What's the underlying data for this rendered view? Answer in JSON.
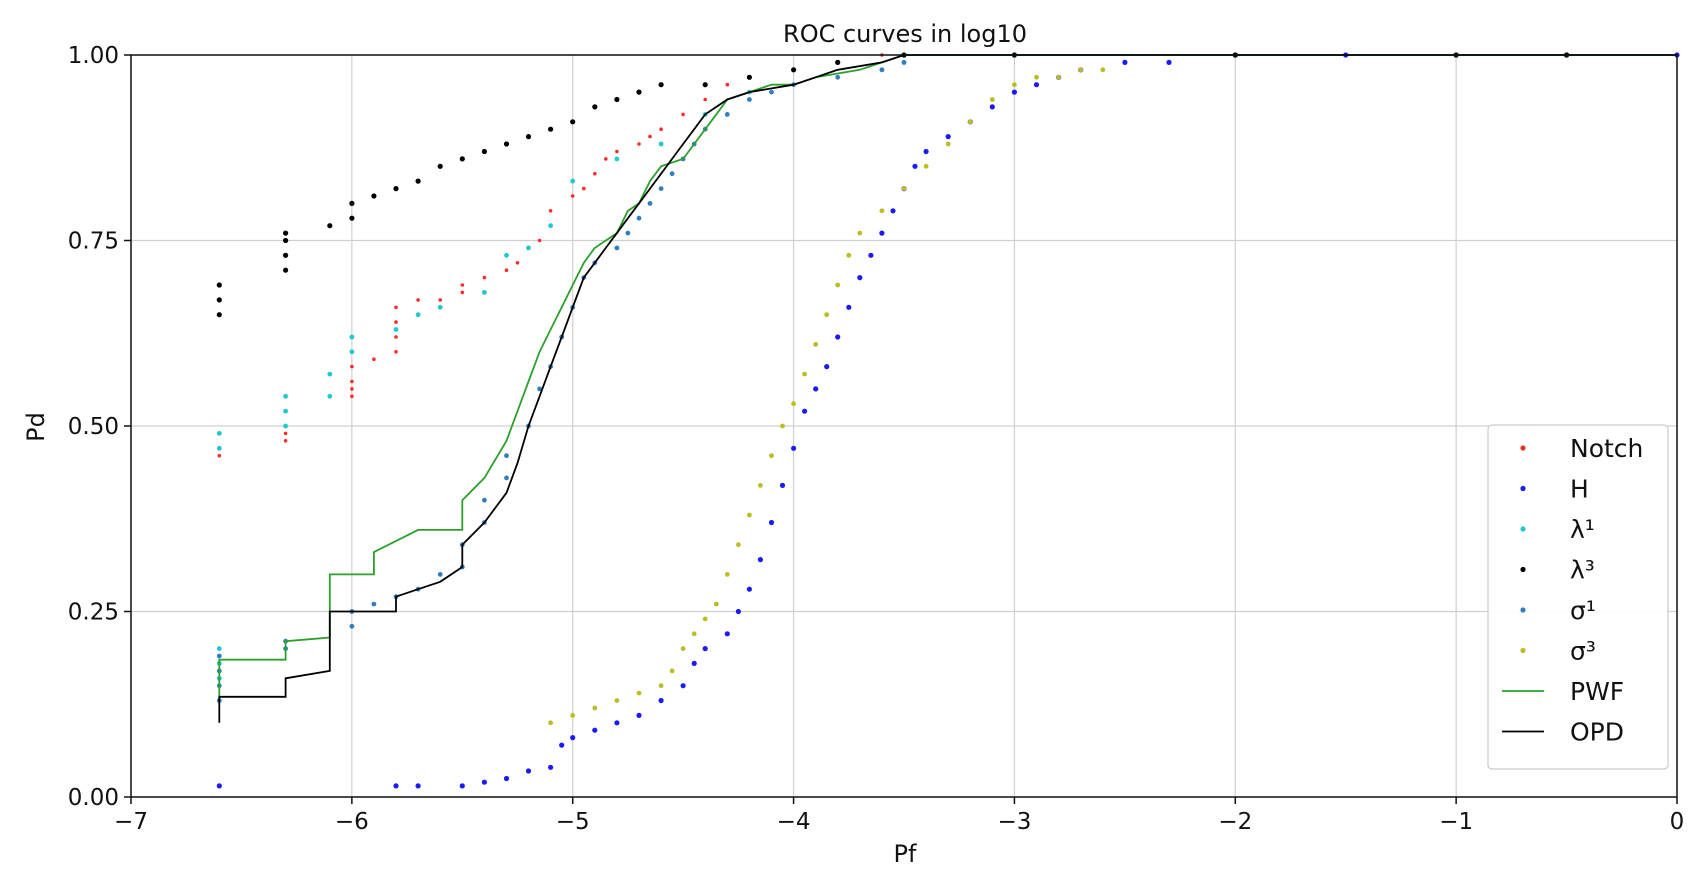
{
  "chart_data": {
    "type": "scatter",
    "title": "ROC curves in log10",
    "xlabel": "Pf",
    "ylabel": "Pd",
    "xlim": [
      -7,
      0
    ],
    "ylim": [
      0,
      1.0
    ],
    "grid": true,
    "legend_position": "lower-right",
    "x_ticks": [
      -7,
      -6,
      -5,
      -4,
      -3,
      -2,
      -1,
      0
    ],
    "x_tick_labels": [
      "−7",
      "−6",
      "−5",
      "−4",
      "−3",
      "−2",
      "−1",
      "0"
    ],
    "y_ticks": [
      0,
      0.25,
      0.5,
      0.75,
      1.0
    ],
    "y_tick_labels": [
      "0.00",
      "0.25",
      "0.50",
      "0.75",
      "1.00"
    ],
    "series": [
      {
        "name": "Notch",
        "kind": "points",
        "color": "#ff2a2a",
        "points": [
          [
            -6.6,
            0.47
          ],
          [
            -6.6,
            0.46
          ],
          [
            -6.3,
            0.48
          ],
          [
            -6.3,
            0.49
          ],
          [
            -6.3,
            0.5
          ],
          [
            -6.3,
            0.52
          ],
          [
            -6.0,
            0.54
          ],
          [
            -6.0,
            0.55
          ],
          [
            -6.0,
            0.56
          ],
          [
            -6.0,
            0.58
          ],
          [
            -5.9,
            0.59
          ],
          [
            -5.8,
            0.6
          ],
          [
            -5.8,
            0.62
          ],
          [
            -5.8,
            0.64
          ],
          [
            -5.8,
            0.66
          ],
          [
            -5.7,
            0.67
          ],
          [
            -5.6,
            0.67
          ],
          [
            -5.5,
            0.68
          ],
          [
            -5.5,
            0.69
          ],
          [
            -5.4,
            0.7
          ],
          [
            -5.3,
            0.71
          ],
          [
            -5.25,
            0.72
          ],
          [
            -5.2,
            0.74
          ],
          [
            -5.15,
            0.75
          ],
          [
            -5.1,
            0.77
          ],
          [
            -5.1,
            0.79
          ],
          [
            -5.0,
            0.81
          ],
          [
            -4.95,
            0.82
          ],
          [
            -4.9,
            0.84
          ],
          [
            -4.85,
            0.86
          ],
          [
            -4.8,
            0.87
          ],
          [
            -4.7,
            0.88
          ],
          [
            -4.65,
            0.89
          ],
          [
            -4.6,
            0.9
          ],
          [
            -4.5,
            0.92
          ],
          [
            -4.4,
            0.94
          ],
          [
            -4.3,
            0.96
          ],
          [
            -4.2,
            0.97
          ],
          [
            -4.0,
            0.98
          ],
          [
            -3.8,
            0.99
          ],
          [
            -3.6,
            1.0
          ]
        ]
      },
      {
        "name": "H",
        "kind": "points",
        "color": "#1a1aff",
        "points": [
          [
            -6.6,
            0.015
          ],
          [
            -5.8,
            0.015
          ],
          [
            -5.7,
            0.015
          ],
          [
            -5.5,
            0.015
          ],
          [
            -5.4,
            0.02
          ],
          [
            -5.3,
            0.025
          ],
          [
            -5.2,
            0.035
          ],
          [
            -5.1,
            0.04
          ],
          [
            -5.05,
            0.07
          ],
          [
            -5.0,
            0.08
          ],
          [
            -4.9,
            0.09
          ],
          [
            -4.8,
            0.1
          ],
          [
            -4.7,
            0.11
          ],
          [
            -4.6,
            0.13
          ],
          [
            -4.5,
            0.15
          ],
          [
            -4.45,
            0.18
          ],
          [
            -4.4,
            0.2
          ],
          [
            -4.3,
            0.22
          ],
          [
            -4.25,
            0.25
          ],
          [
            -4.2,
            0.28
          ],
          [
            -4.15,
            0.32
          ],
          [
            -4.1,
            0.37
          ],
          [
            -4.05,
            0.42
          ],
          [
            -4.0,
            0.47
          ],
          [
            -3.95,
            0.52
          ],
          [
            -3.9,
            0.55
          ],
          [
            -3.85,
            0.58
          ],
          [
            -3.8,
            0.62
          ],
          [
            -3.75,
            0.66
          ],
          [
            -3.7,
            0.7
          ],
          [
            -3.65,
            0.73
          ],
          [
            -3.6,
            0.76
          ],
          [
            -3.55,
            0.79
          ],
          [
            -3.5,
            0.82
          ],
          [
            -3.45,
            0.85
          ],
          [
            -3.4,
            0.87
          ],
          [
            -3.3,
            0.89
          ],
          [
            -3.2,
            0.91
          ],
          [
            -3.1,
            0.93
          ],
          [
            -3.0,
            0.95
          ],
          [
            -2.9,
            0.96
          ],
          [
            -2.8,
            0.97
          ],
          [
            -2.7,
            0.98
          ],
          [
            -2.5,
            0.99
          ],
          [
            -2.3,
            0.99
          ],
          [
            -2.0,
            1.0
          ],
          [
            -1.5,
            1.0
          ],
          [
            -1.0,
            1.0
          ],
          [
            -0.5,
            1.0
          ],
          [
            0.0,
            1.0
          ]
        ]
      },
      {
        "name": "λ¹",
        "kind": "points",
        "color": "#1fc9cf",
        "points": [
          [
            -6.6,
            0.2
          ],
          [
            -6.6,
            0.18
          ],
          [
            -6.6,
            0.16
          ],
          [
            -6.6,
            0.49
          ],
          [
            -6.6,
            0.47
          ],
          [
            -6.3,
            0.5
          ],
          [
            -6.3,
            0.52
          ],
          [
            -6.3,
            0.54
          ],
          [
            -6.1,
            0.54
          ],
          [
            -6.1,
            0.57
          ],
          [
            -6.0,
            0.6
          ],
          [
            -6.0,
            0.62
          ],
          [
            -5.8,
            0.63
          ],
          [
            -5.7,
            0.65
          ],
          [
            -5.6,
            0.66
          ],
          [
            -5.4,
            0.68
          ],
          [
            -5.3,
            0.73
          ],
          [
            -5.2,
            0.74
          ],
          [
            -5.1,
            0.77
          ],
          [
            -5.0,
            0.83
          ],
          [
            -4.8,
            0.86
          ],
          [
            -4.6,
            0.88
          ],
          [
            -4.4,
            0.92
          ],
          [
            -4.2,
            0.95
          ],
          [
            -3.6,
            0.98
          ],
          [
            -3.5,
            0.99
          ]
        ]
      },
      {
        "name": "λ³",
        "kind": "points",
        "color": "#000000",
        "points": [
          [
            -6.6,
            0.65
          ],
          [
            -6.6,
            0.67
          ],
          [
            -6.6,
            0.69
          ],
          [
            -6.3,
            0.71
          ],
          [
            -6.3,
            0.73
          ],
          [
            -6.3,
            0.75
          ],
          [
            -6.3,
            0.76
          ],
          [
            -6.1,
            0.77
          ],
          [
            -6.0,
            0.78
          ],
          [
            -6.0,
            0.8
          ],
          [
            -5.9,
            0.81
          ],
          [
            -5.8,
            0.82
          ],
          [
            -5.7,
            0.83
          ],
          [
            -5.6,
            0.85
          ],
          [
            -5.5,
            0.86
          ],
          [
            -5.4,
            0.87
          ],
          [
            -5.3,
            0.88
          ],
          [
            -5.2,
            0.89
          ],
          [
            -5.1,
            0.9
          ],
          [
            -5.0,
            0.91
          ],
          [
            -4.9,
            0.93
          ],
          [
            -4.8,
            0.94
          ],
          [
            -4.7,
            0.95
          ],
          [
            -4.6,
            0.96
          ],
          [
            -4.4,
            0.96
          ],
          [
            -4.2,
            0.97
          ],
          [
            -4.0,
            0.98
          ],
          [
            -3.8,
            0.99
          ],
          [
            -3.5,
            1.0
          ],
          [
            -3.0,
            1.0
          ],
          [
            -2.0,
            1.0
          ],
          [
            -1.0,
            1.0
          ],
          [
            -0.5,
            1.0
          ]
        ]
      },
      {
        "name": "σ¹",
        "kind": "points",
        "color": "#2f7fc1",
        "points": [
          [
            -6.6,
            0.13
          ],
          [
            -6.6,
            0.15
          ],
          [
            -6.6,
            0.17
          ],
          [
            -6.6,
            0.19
          ],
          [
            -6.3,
            0.2
          ],
          [
            -6.3,
            0.21
          ],
          [
            -6.0,
            0.23
          ],
          [
            -6.0,
            0.25
          ],
          [
            -5.9,
            0.26
          ],
          [
            -5.8,
            0.27
          ],
          [
            -5.7,
            0.28
          ],
          [
            -5.6,
            0.3
          ],
          [
            -5.5,
            0.31
          ],
          [
            -5.5,
            0.34
          ],
          [
            -5.4,
            0.37
          ],
          [
            -5.4,
            0.4
          ],
          [
            -5.3,
            0.43
          ],
          [
            -5.3,
            0.46
          ],
          [
            -5.2,
            0.5
          ],
          [
            -5.15,
            0.55
          ],
          [
            -5.1,
            0.58
          ],
          [
            -5.05,
            0.62
          ],
          [
            -5.0,
            0.66
          ],
          [
            -4.95,
            0.7
          ],
          [
            -4.9,
            0.72
          ],
          [
            -4.8,
            0.74
          ],
          [
            -4.75,
            0.76
          ],
          [
            -4.7,
            0.78
          ],
          [
            -4.65,
            0.8
          ],
          [
            -4.6,
            0.82
          ],
          [
            -4.55,
            0.84
          ],
          [
            -4.5,
            0.86
          ],
          [
            -4.45,
            0.88
          ],
          [
            -4.4,
            0.9
          ],
          [
            -4.3,
            0.92
          ],
          [
            -4.2,
            0.94
          ],
          [
            -4.1,
            0.95
          ],
          [
            -4.0,
            0.96
          ],
          [
            -3.8,
            0.97
          ],
          [
            -3.6,
            0.98
          ],
          [
            -3.5,
            0.99
          ]
        ]
      },
      {
        "name": "σ³",
        "kind": "points",
        "color": "#bcbd22",
        "points": [
          [
            -5.1,
            0.1
          ],
          [
            -5.0,
            0.11
          ],
          [
            -4.9,
            0.12
          ],
          [
            -4.8,
            0.13
          ],
          [
            -4.7,
            0.14
          ],
          [
            -4.6,
            0.15
          ],
          [
            -4.55,
            0.17
          ],
          [
            -4.5,
            0.2
          ],
          [
            -4.45,
            0.22
          ],
          [
            -4.4,
            0.24
          ],
          [
            -4.35,
            0.26
          ],
          [
            -4.3,
            0.3
          ],
          [
            -4.25,
            0.34
          ],
          [
            -4.2,
            0.38
          ],
          [
            -4.15,
            0.42
          ],
          [
            -4.1,
            0.46
          ],
          [
            -4.05,
            0.5
          ],
          [
            -4.0,
            0.53
          ],
          [
            -3.95,
            0.57
          ],
          [
            -3.9,
            0.61
          ],
          [
            -3.85,
            0.65
          ],
          [
            -3.8,
            0.69
          ],
          [
            -3.75,
            0.73
          ],
          [
            -3.7,
            0.76
          ],
          [
            -3.6,
            0.79
          ],
          [
            -3.5,
            0.82
          ],
          [
            -3.4,
            0.85
          ],
          [
            -3.3,
            0.88
          ],
          [
            -3.2,
            0.91
          ],
          [
            -3.1,
            0.94
          ],
          [
            -3.0,
            0.96
          ],
          [
            -2.9,
            0.97
          ],
          [
            -2.8,
            0.97
          ],
          [
            -2.7,
            0.98
          ],
          [
            -2.6,
            0.98
          ]
        ]
      },
      {
        "name": "PWF",
        "kind": "step",
        "color": "#2ca02c",
        "points": [
          [
            -6.6,
            0.13
          ],
          [
            -6.6,
            0.185
          ],
          [
            -6.3,
            0.185
          ],
          [
            -6.3,
            0.21
          ],
          [
            -6.1,
            0.215
          ],
          [
            -6.1,
            0.3
          ],
          [
            -5.9,
            0.3
          ],
          [
            -5.9,
            0.33
          ],
          [
            -5.7,
            0.36
          ],
          [
            -5.5,
            0.36
          ],
          [
            -5.5,
            0.4
          ],
          [
            -5.4,
            0.43
          ],
          [
            -5.3,
            0.48
          ],
          [
            -5.25,
            0.52
          ],
          [
            -5.2,
            0.56
          ],
          [
            -5.15,
            0.6
          ],
          [
            -5.1,
            0.63
          ],
          [
            -5.05,
            0.66
          ],
          [
            -5.0,
            0.69
          ],
          [
            -4.95,
            0.72
          ],
          [
            -4.9,
            0.74
          ],
          [
            -4.8,
            0.76
          ],
          [
            -4.75,
            0.79
          ],
          [
            -4.7,
            0.8
          ],
          [
            -4.65,
            0.83
          ],
          [
            -4.6,
            0.85
          ],
          [
            -4.5,
            0.86
          ],
          [
            -4.45,
            0.88
          ],
          [
            -4.4,
            0.9
          ],
          [
            -4.35,
            0.92
          ],
          [
            -4.3,
            0.94
          ],
          [
            -4.2,
            0.95
          ],
          [
            -4.1,
            0.96
          ],
          [
            -4.0,
            0.96
          ],
          [
            -3.9,
            0.97
          ],
          [
            -3.7,
            0.98
          ],
          [
            -3.6,
            0.99
          ],
          [
            -3.5,
            1.0
          ],
          [
            0.0,
            1.0
          ]
        ]
      },
      {
        "name": "OPD",
        "kind": "step",
        "color": "#000000",
        "points": [
          [
            -6.6,
            0.1
          ],
          [
            -6.6,
            0.135
          ],
          [
            -6.3,
            0.135
          ],
          [
            -6.3,
            0.16
          ],
          [
            -6.1,
            0.17
          ],
          [
            -6.1,
            0.25
          ],
          [
            -5.8,
            0.25
          ],
          [
            -5.8,
            0.27
          ],
          [
            -5.7,
            0.28
          ],
          [
            -5.6,
            0.29
          ],
          [
            -5.5,
            0.31
          ],
          [
            -5.5,
            0.34
          ],
          [
            -5.4,
            0.37
          ],
          [
            -5.3,
            0.41
          ],
          [
            -5.25,
            0.45
          ],
          [
            -5.2,
            0.5
          ],
          [
            -5.15,
            0.54
          ],
          [
            -5.1,
            0.58
          ],
          [
            -5.05,
            0.62
          ],
          [
            -5.0,
            0.66
          ],
          [
            -4.95,
            0.7
          ],
          [
            -4.9,
            0.72
          ],
          [
            -4.85,
            0.74
          ],
          [
            -4.8,
            0.76
          ],
          [
            -4.75,
            0.78
          ],
          [
            -4.7,
            0.8
          ],
          [
            -4.65,
            0.82
          ],
          [
            -4.6,
            0.84
          ],
          [
            -4.55,
            0.86
          ],
          [
            -4.5,
            0.88
          ],
          [
            -4.45,
            0.9
          ],
          [
            -4.4,
            0.92
          ],
          [
            -4.3,
            0.94
          ],
          [
            -4.2,
            0.95
          ],
          [
            -4.0,
            0.96
          ],
          [
            -3.9,
            0.97
          ],
          [
            -3.8,
            0.98
          ],
          [
            -3.6,
            0.99
          ],
          [
            -3.5,
            1.0
          ],
          [
            0.0,
            1.0
          ]
        ]
      }
    ]
  }
}
